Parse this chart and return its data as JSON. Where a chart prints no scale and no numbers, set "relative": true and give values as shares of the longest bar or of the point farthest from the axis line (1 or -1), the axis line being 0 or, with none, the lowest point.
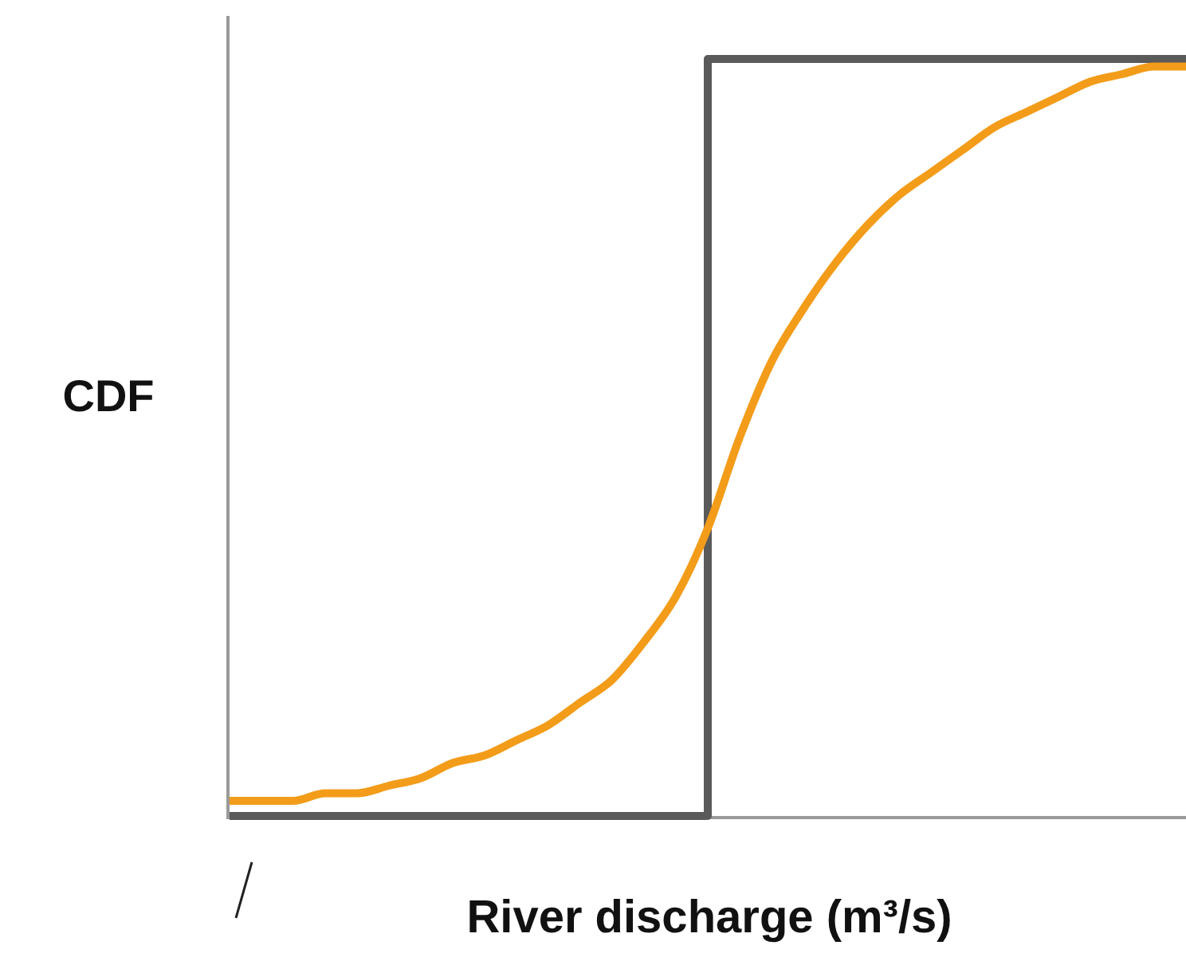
{
  "chart_data": {
    "type": "line",
    "relative": true,
    "xlabel": "River discharge (m³/s)",
    "ylabel": "CDF",
    "categories": [
      null,
      null,
      null,
      null,
      null,
      null,
      null,
      null,
      null,
      null,
      null,
      null,
      null,
      null,
      null,
      null,
      null,
      null,
      null,
      null,
      null,
      null,
      null,
      null,
      null,
      null,
      null,
      null,
      null,
      null,
      null
    ],
    "series": [
      {
        "type": "step",
        "color": "#5a5a5a",
        "values": [
          0,
          0,
          0,
          0,
          0,
          0,
          0,
          0,
          0,
          0,
          0,
          0,
          0,
          0,
          0,
          1,
          1,
          1,
          1,
          1,
          1,
          1,
          1,
          1,
          1,
          1,
          1,
          1,
          1,
          1,
          1
        ]
      },
      {
        "type": "line",
        "color": "#f39c1a",
        "values": [
          0.02,
          0.02,
          0.02,
          0.03,
          0.03,
          0.04,
          0.05,
          0.07,
          0.08,
          0.1,
          0.12,
          0.15,
          0.18,
          0.23,
          0.29,
          0.38,
          0.5,
          0.6,
          0.67,
          0.73,
          0.78,
          0.82,
          0.85,
          0.88,
          0.91,
          0.93,
          0.95,
          0.97,
          0.98,
          0.99,
          0.99
        ]
      }
    ]
  }
}
